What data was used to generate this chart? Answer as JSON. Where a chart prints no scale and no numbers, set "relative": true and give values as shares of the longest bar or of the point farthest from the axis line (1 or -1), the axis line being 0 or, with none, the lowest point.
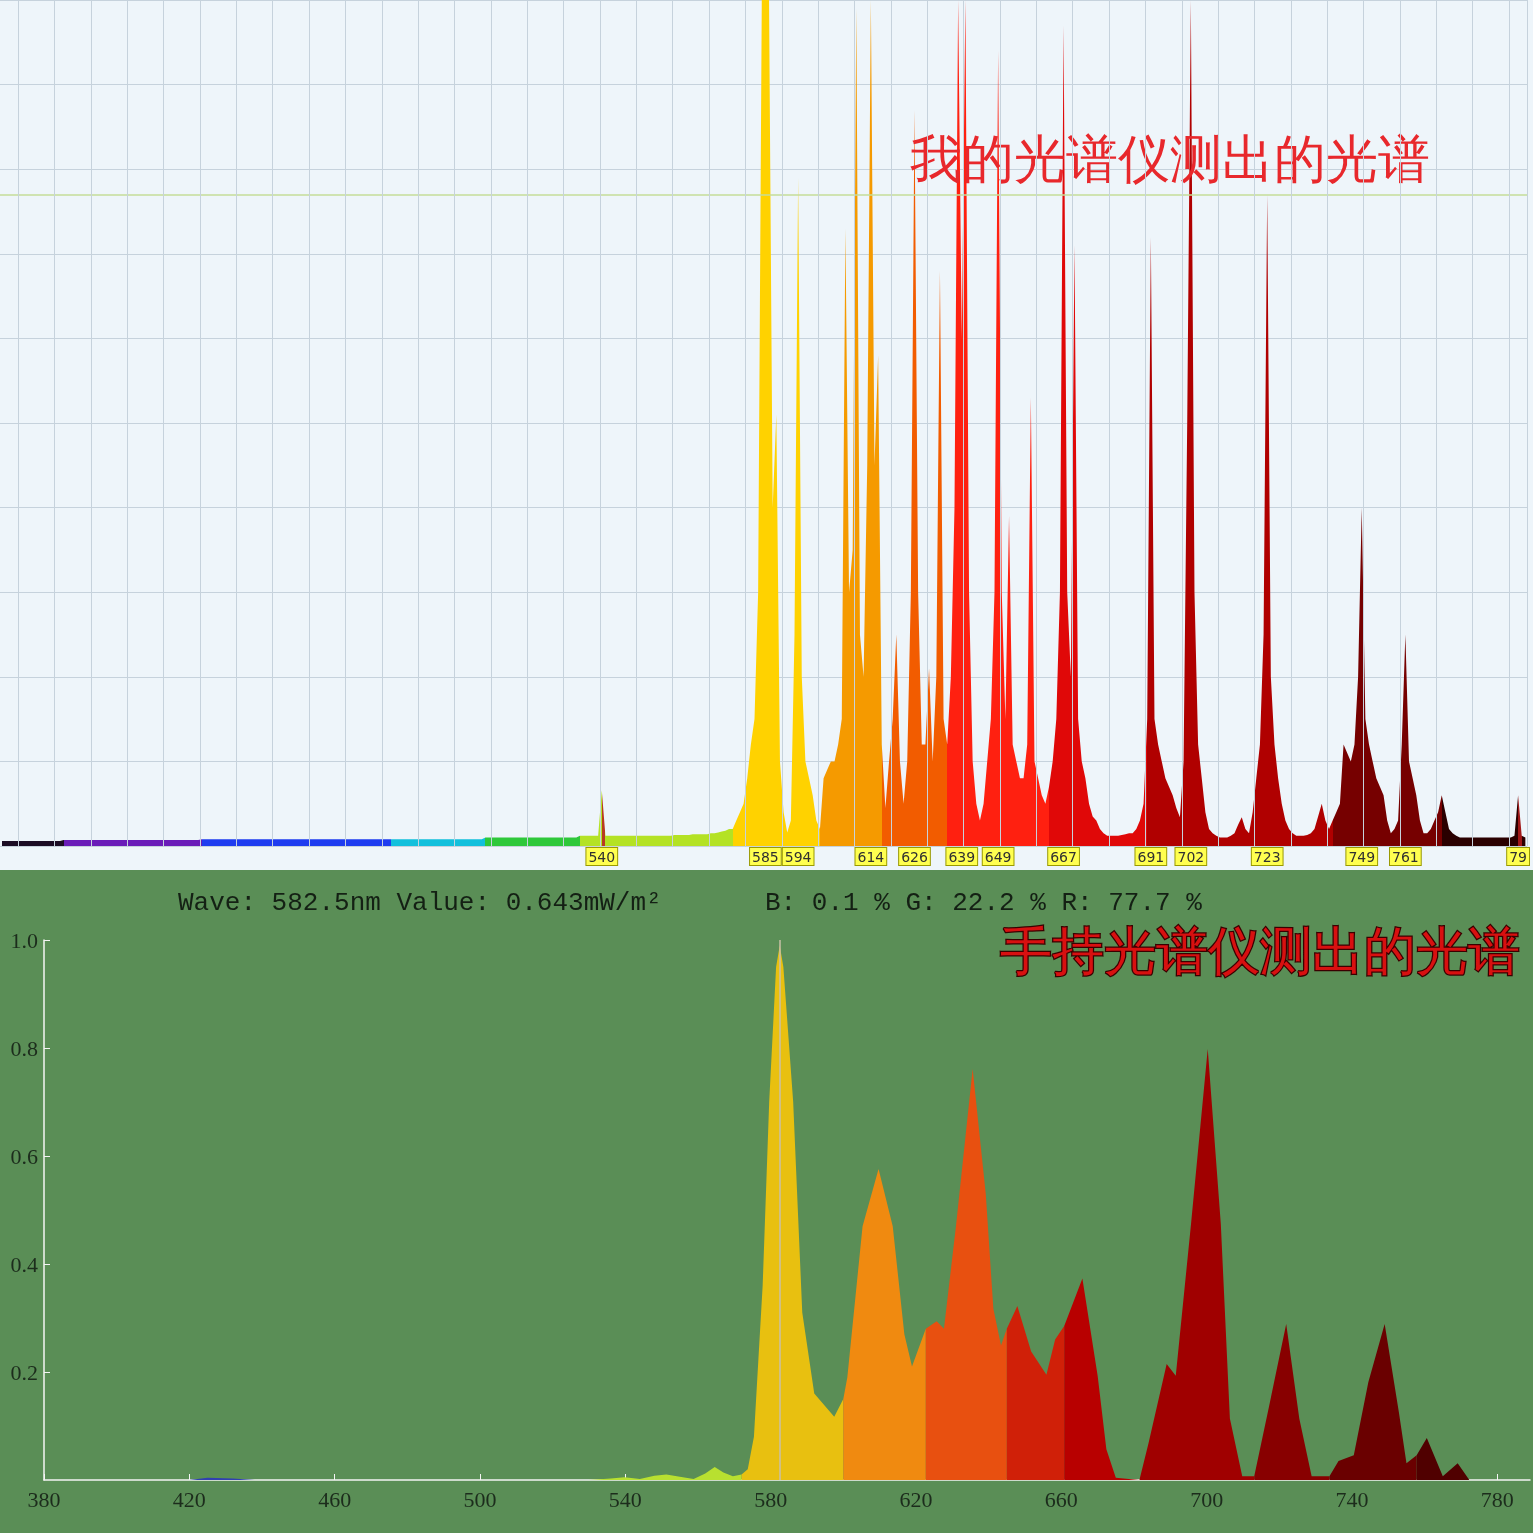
{
  "chart_data": [
    {
      "type": "area",
      "title": "我的光谱仪测出的光谱",
      "relative": true,
      "tick_labels": "x",
      "grid": true,
      "categories": [
        null,
        null,
        null,
        null,
        null,
        null,
        null,
        null,
        null,
        null,
        null,
        null,
        null,
        null,
        null,
        null,
        null,
        null,
        null,
        null,
        null,
        null,
        null,
        null,
        null,
        null,
        null,
        null,
        null,
        null,
        null,
        null,
        null,
        null,
        null,
        null,
        null,
        null,
        null,
        null,
        null,
        null,
        null,
        null,
        null,
        null,
        null,
        null,
        null,
        null,
        null,
        null,
        null,
        null,
        null,
        null,
        null,
        null,
        null,
        null,
        null,
        null,
        null,
        null,
        null,
        null,
        null,
        null,
        null,
        null,
        null,
        null,
        null,
        null,
        null,
        null,
        null,
        null,
        null,
        null,
        null,
        null,
        null,
        null,
        null,
        null,
        null,
        null,
        null,
        null,
        null,
        null,
        null,
        null,
        null,
        null,
        null,
        null,
        null,
        null,
        null,
        null,
        null,
        null,
        null,
        null,
        null,
        null,
        null,
        null,
        null,
        null,
        null,
        null,
        null,
        null,
        null,
        null,
        null,
        null,
        null,
        null,
        null,
        null,
        null,
        null,
        null,
        null,
        null,
        null,
        null,
        null,
        null,
        null,
        null,
        null,
        null,
        null,
        null,
        null,
        null,
        null,
        null,
        null,
        null,
        null,
        null,
        null,
        null,
        null,
        null,
        null,
        null,
        null,
        null,
        null,
        null,
        null,
        null,
        null,
        null,
        null,
        null,
        null,
        null,
        "540",
        null,
        null,
        null,
        null,
        null,
        null,
        null,
        null,
        null,
        null,
        null,
        null,
        null,
        null,
        null,
        null,
        null,
        null,
        null,
        null,
        null,
        null,
        null,
        null,
        null,
        null,
        null,
        null,
        null,
        null,
        null,
        null,
        null,
        null,
        null,
        null,
        null,
        null,
        null,
        null,
        null,
        null,
        null,
        null,
        "585",
        null,
        null,
        null,
        null,
        null,
        null,
        null,
        null,
        "594",
        null,
        null,
        null,
        null,
        null,
        null,
        null,
        null,
        null,
        null,
        null,
        null,
        null,
        null,
        null,
        null,
        null,
        null,
        null,
        "614",
        null,
        null,
        null,
        null,
        null,
        null,
        null,
        null,
        null,
        null,
        null,
        "626",
        null,
        null,
        null,
        null,
        null,
        null,
        null,
        null,
        null,
        null,
        null,
        null,
        "639",
        null,
        null,
        null,
        null,
        null,
        null,
        null,
        null,
        null,
        "649",
        null,
        null,
        null,
        null,
        null,
        null,
        null,
        null,
        null,
        null,
        null,
        null,
        null,
        null,
        null,
        null,
        null,
        "667",
        null,
        null,
        null,
        null,
        null,
        null,
        null,
        null,
        null,
        null,
        null,
        null,
        null,
        null,
        null,
        null,
        null,
        null,
        null,
        null,
        null,
        null,
        null,
        "691",
        null,
        null,
        null,
        null,
        null,
        null,
        null,
        null,
        null,
        null,
        "702",
        null,
        null,
        null,
        null,
        null,
        null,
        null,
        null,
        null,
        null,
        null,
        null,
        null,
        null,
        null,
        null,
        null,
        null,
        null,
        null,
        "723",
        null,
        null,
        null,
        null,
        null,
        null,
        null,
        null,
        null,
        null,
        null,
        null,
        null,
        null,
        null,
        null,
        null,
        null,
        null,
        null,
        null,
        null,
        null,
        null,
        null,
        "749",
        null,
        null,
        null,
        null,
        null,
        null,
        null,
        null,
        null,
        null,
        null,
        "761",
        null,
        null,
        null,
        null,
        null,
        null,
        null,
        null,
        null,
        null,
        null,
        null,
        null,
        null,
        null,
        null,
        null,
        null,
        null,
        null,
        null,
        null,
        null,
        null,
        null,
        null,
        null,
        null,
        null,
        null,
        "79",
        null,
        null
      ],
      "values": [
        0.006,
        0.006,
        0.006,
        0.006,
        0.006,
        0.006,
        0.006,
        0.006,
        0.006,
        0.006,
        0.006,
        0.006,
        0.006,
        0.006,
        0.006,
        0.006,
        0.006,
        0.007,
        0.007,
        0.007,
        0.007,
        0.007,
        0.007,
        0.007,
        0.007,
        0.007,
        0.007,
        0.007,
        0.007,
        0.007,
        0.007,
        0.007,
        0.007,
        0.007,
        0.007,
        0.007,
        0.007,
        0.007,
        0.007,
        0.007,
        0.007,
        0.007,
        0.007,
        0.007,
        0.007,
        0.007,
        0.007,
        0.007,
        0.007,
        0.007,
        0.007,
        0.007,
        0.007,
        0.007,
        0.007,
        0.008,
        0.008,
        0.008,
        0.008,
        0.008,
        0.008,
        0.008,
        0.008,
        0.008,
        0.008,
        0.008,
        0.008,
        0.008,
        0.008,
        0.008,
        0.008,
        0.008,
        0.008,
        0.008,
        0.008,
        0.008,
        0.008,
        0.008,
        0.008,
        0.008,
        0.008,
        0.008,
        0.008,
        0.008,
        0.008,
        0.008,
        0.008,
        0.008,
        0.008,
        0.008,
        0.008,
        0.008,
        0.008,
        0.008,
        0.008,
        0.008,
        0.008,
        0.008,
        0.008,
        0.008,
        0.008,
        0.008,
        0.008,
        0.008,
        0.008,
        0.008,
        0.008,
        0.008,
        0.008,
        0.008,
        0.008,
        0.008,
        0.008,
        0.008,
        0.008,
        0.008,
        0.008,
        0.008,
        0.008,
        0.008,
        0.008,
        0.008,
        0.008,
        0.008,
        0.008,
        0.008,
        0.008,
        0.008,
        0.008,
        0.008,
        0.008,
        0.008,
        0.008,
        0.01,
        0.01,
        0.01,
        0.01,
        0.01,
        0.01,
        0.01,
        0.01,
        0.01,
        0.01,
        0.01,
        0.01,
        0.01,
        0.01,
        0.01,
        0.01,
        0.01,
        0.01,
        0.01,
        0.01,
        0.01,
        0.01,
        0.01,
        0.01,
        0.01,
        0.01,
        0.012,
        0.012,
        0.012,
        0.012,
        0.012,
        0.012,
        0.066,
        0.012,
        0.012,
        0.012,
        0.012,
        0.012,
        0.012,
        0.012,
        0.012,
        0.012,
        0.012,
        0.012,
        0.012,
        0.012,
        0.012,
        0.012,
        0.012,
        0.012,
        0.012,
        0.012,
        0.013,
        0.013,
        0.013,
        0.013,
        0.013,
        0.014,
        0.014,
        0.014,
        0.014,
        0.014,
        0.015,
        0.015,
        0.016,
        0.017,
        0.018,
        0.02,
        0.02,
        0.03,
        0.04,
        0.05,
        0.08,
        0.12,
        0.15,
        0.3,
        1,
        1,
        1,
        0.4,
        0.51,
        0.1,
        0.04,
        0.016,
        0.03,
        0.25,
        0.79,
        0.2,
        0.1,
        0.08,
        0.06,
        0.03,
        0.02,
        0.08,
        0.09,
        0.1,
        0.1,
        0.12,
        0.15,
        0.73,
        0.3,
        0.35,
        0.99,
        0.25,
        0.2,
        0.45,
        1,
        0.45,
        0.58,
        0.12,
        0.045,
        0.1,
        0.15,
        0.25,
        0.1,
        0.05,
        0.1,
        0.3,
        0.87,
        0.3,
        0.12,
        0.12,
        0.21,
        0.1,
        0.2,
        0.68,
        0.15,
        0.12,
        0.2,
        0.4,
        1,
        0.6,
        1,
        0.3,
        0.1,
        0.05,
        0.03,
        0.05,
        0.1,
        0.15,
        0.3,
        0.94,
        0.3,
        0.15,
        0.39,
        0.12,
        0.1,
        0.08,
        0.08,
        0.12,
        0.53,
        0.1,
        0.08,
        0.06,
        0.05,
        0.07,
        0.1,
        0.15,
        0.3,
        0.97,
        0.3,
        0.2,
        0.71,
        0.15,
        0.1,
        0.08,
        0.05,
        0.035,
        0.03,
        0.02,
        0.015,
        0.012,
        0.012,
        0.012,
        0.012,
        0.013,
        0.014,
        0.015,
        0.015,
        0.02,
        0.03,
        0.05,
        0.15,
        0.72,
        0.15,
        0.12,
        0.1,
        0.08,
        0.07,
        0.06,
        0.045,
        0.034,
        0.1,
        0.5,
        1,
        0.3,
        0.12,
        0.08,
        0.04,
        0.02,
        0.015,
        0.012,
        0.01,
        0.01,
        0.01,
        0.012,
        0.015,
        0.025,
        0.034,
        0.02,
        0.015,
        0.04,
        0.08,
        0.12,
        0.25,
        0.77,
        0.2,
        0.12,
        0.08,
        0.05,
        0.03,
        0.02,
        0.015,
        0.012,
        0.012,
        0.012,
        0.013,
        0.015,
        0.02,
        0.035,
        0.05,
        0.03,
        0.02,
        0.03,
        0.04,
        0.05,
        0.12,
        0.11,
        0.1,
        0.12,
        0.2,
        0.4,
        0.15,
        0.12,
        0.1,
        0.08,
        0.07,
        0.06,
        0.03,
        0.015,
        0.02,
        0.03,
        0.12,
        0.25,
        0.1,
        0.08,
        0.06,
        0.03,
        0.015,
        0.015,
        0.02,
        0.03,
        0.04,
        0.06,
        0.04,
        0.02,
        0.015,
        0.012,
        0.01,
        0.01,
        0.01,
        0.01,
        0.01,
        0.01,
        0.01,
        0.01,
        0.01,
        0.01,
        0.01,
        0.01,
        0.01,
        0.01,
        0.01,
        0.012,
        0.06,
        0.012,
        0.01
      ],
      "colors": [
        "#1c0c24",
        "#1c0c24",
        "#1c0c24",
        "#1c0c24",
        "#1c0c24",
        "#1c0c24",
        "#1c0c24",
        "#1c0c24",
        "#1c0c24",
        "#1c0c24",
        "#1c0c24",
        "#1c0c24",
        "#1c0c24",
        "#1c0c24",
        "#1c0c24",
        "#1c0c24",
        "#1c0c24",
        "#6a1cb8",
        "#6a1cb8",
        "#6a1cb8",
        "#6a1cb8",
        "#6a1cb8",
        "#6a1cb8",
        "#6a1cb8",
        "#6a1cb8",
        "#6a1cb8",
        "#6a1cb8",
        "#6a1cb8",
        "#6a1cb8",
        "#6a1cb8",
        "#6a1cb8",
        "#6a1cb8",
        "#6a1cb8",
        "#6a1cb8",
        "#6a1cb8",
        "#6a1cb8",
        "#6a1cb8",
        "#6a1cb8",
        "#6a1cb8",
        "#6a1cb8",
        "#6a1cb8",
        "#6a1cb8",
        "#6a1cb8",
        "#6a1cb8",
        "#6a1cb8",
        "#6a1cb8",
        "#6a1cb8",
        "#6a1cb8",
        "#6a1cb8",
        "#6a1cb8",
        "#6a1cb8",
        "#6a1cb8",
        "#6a1cb8",
        "#6a1cb8",
        "#6a1cb8",
        "#1e3cf0",
        "#1e3cf0",
        "#1e3cf0",
        "#1e3cf0",
        "#1e3cf0",
        "#1e3cf0",
        "#1e3cf0",
        "#1e3cf0",
        "#1e3cf0",
        "#1e3cf0",
        "#1e3cf0",
        "#1e3cf0",
        "#1e3cf0",
        "#1e3cf0",
        "#1e3cf0",
        "#1e3cf0",
        "#1e3cf0",
        "#1e3cf0",
        "#1e3cf0",
        "#1e3cf0",
        "#1e3cf0",
        "#1e3cf0",
        "#1e3cf0",
        "#1e3cf0",
        "#1e3cf0",
        "#1e3cf0",
        "#1e3cf0",
        "#1e3cf0",
        "#1e3cf0",
        "#1e3cf0",
        "#1e3cf0",
        "#1e3cf0",
        "#1e3cf0",
        "#1e3cf0",
        "#1e3cf0",
        "#1e3cf0",
        "#1e3cf0",
        "#1e3cf0",
        "#1e3cf0",
        "#1e3cf0",
        "#1e3cf0",
        "#1e3cf0",
        "#1e3cf0",
        "#1e3cf0",
        "#1e3cf0",
        "#1e3cf0",
        "#1e3cf0",
        "#1e3cf0",
        "#1e3cf0",
        "#1e3cf0",
        "#1e3cf0",
        "#1e3cf0",
        "#12c0dc",
        "#12c0dc",
        "#12c0dc",
        "#12c0dc",
        "#12c0dc",
        "#12c0dc",
        "#12c0dc",
        "#12c0dc",
        "#12c0dc",
        "#12c0dc",
        "#12c0dc",
        "#12c0dc",
        "#12c0dc",
        "#12c0dc",
        "#12c0dc",
        "#12c0dc",
        "#12c0dc",
        "#12c0dc",
        "#12c0dc",
        "#12c0dc",
        "#12c0dc",
        "#12c0dc",
        "#12c0dc",
        "#12c0dc",
        "#12c0dc",
        "#12c0dc",
        "#2ec83a",
        "#2ec83a",
        "#2ec83a",
        "#2ec83a",
        "#2ec83a",
        "#2ec83a",
        "#2ec83a",
        "#2ec83a",
        "#2ec83a",
        "#2ec83a",
        "#2ec83a",
        "#2ec83a",
        "#2ec83a",
        "#2ec83a",
        "#2ec83a",
        "#2ec83a",
        "#2ec83a",
        "#2ec83a",
        "#2ec83a",
        "#2ec83a",
        "#2ec83a",
        "#2ec83a",
        "#2ec83a",
        "#2ec83a",
        "#2ec83a",
        "#2ec83a",
        "#b4e224",
        "#b4e224",
        "#b4e224",
        "#b4e224",
        "#b4e224",
        "#b4e224",
        "#b83a20",
        "#b4e224",
        "#b4e224",
        "#b4e224",
        "#b4e224",
        "#b4e224",
        "#b4e224",
        "#b4e224",
        "#b4e224",
        "#b4e224",
        "#b4e224",
        "#b4e224",
        "#b4e224",
        "#b4e224",
        "#b4e224",
        "#b4e224",
        "#b4e224",
        "#b4e224",
        "#b4e224",
        "#b4e224",
        "#b4e224",
        "#b4e224",
        "#b4e224",
        "#b4e224",
        "#b4e224",
        "#b4e224",
        "#b4e224",
        "#b4e224",
        "#b4e224",
        "#b4e224",
        "#b4e224",
        "#b4e224",
        "#b4e224",
        "#b4e224",
        "#b4e224",
        "#b4e224",
        "#ffd200",
        "#ffd200",
        "#ffd200",
        "#ffd200",
        "#ffd200",
        "#ffd200",
        "#ffd200",
        "#ffd200",
        "#ffd200",
        "#ffd200",
        "#ffd200",
        "#ffd200",
        "#ffd200",
        "#ffd200",
        "#ffd200",
        "#ffd200",
        "#ffd200",
        "#ffd200",
        "#ffd200",
        "#ffd200",
        "#ffd200",
        "#ffd200",
        "#ffd200",
        "#ffd200",
        "#f59a00",
        "#f59a00",
        "#f59a00",
        "#f59a00",
        "#f59a00",
        "#f59a00",
        "#f59a00",
        "#f59a00",
        "#f59a00",
        "#f59a00",
        "#f59a00",
        "#f59a00",
        "#f59a00",
        "#f59a00",
        "#f59a00",
        "#f59a00",
        "#f59a00",
        "#f25c00",
        "#f25c00",
        "#f25c00",
        "#f25c00",
        "#f25c00",
        "#f25c00",
        "#f25c00",
        "#f25c00",
        "#f25c00",
        "#f25c00",
        "#f25c00",
        "#f25c00",
        "#f25c00",
        "#f25c00",
        "#f25c00",
        "#f25c00",
        "#f25c00",
        "#f25c00",
        "#ff2010",
        "#ff2010",
        "#ff2010",
        "#ff2010",
        "#ff2010",
        "#ff2010",
        "#ff2010",
        "#ff2010",
        "#ff2010",
        "#ff2010",
        "#ff2010",
        "#ff2010",
        "#ff2010",
        "#ff2010",
        "#ff2010",
        "#ff2010",
        "#ff2010",
        "#ff2010",
        "#ff2010",
        "#ff2010",
        "#ff2010",
        "#ff2010",
        "#ff2010",
        "#ff2010",
        "#ff2010",
        "#ff2010",
        "#ff2010",
        "#ff2010",
        "#e00808",
        "#e00808",
        "#e00808",
        "#e00808",
        "#e00808",
        "#e00808",
        "#e00808",
        "#e00808",
        "#e00808",
        "#e00808",
        "#e00808",
        "#e00808",
        "#e00808",
        "#e00808",
        "#e00808",
        "#e00808",
        "#e00808",
        "#e00808",
        "#e00808",
        "#e00808",
        "#e00808",
        "#e00808",
        "#e00808",
        "#e00808",
        "#e00808",
        "#e00808",
        "#e00808",
        "#b00000",
        "#b00000",
        "#b00000",
        "#b00000",
        "#b00000",
        "#b00000",
        "#b00000",
        "#b00000",
        "#b00000",
        "#b00000",
        "#b00000",
        "#b00000",
        "#b00000",
        "#b00000",
        "#b00000",
        "#b00000",
        "#b00000",
        "#b00000",
        "#b00000",
        "#b00000",
        "#b00000",
        "#b00000",
        "#b00000",
        "#b00000",
        "#b00000",
        "#b00000",
        "#b00000",
        "#b00000",
        "#b00000",
        "#b00000",
        "#b00000",
        "#b00000",
        "#b00000",
        "#b00000",
        "#b00000",
        "#b00000",
        "#b00000",
        "#b00000",
        "#b00000",
        "#b00000",
        "#b00000",
        "#b00000",
        "#b00000",
        "#b00000",
        "#b00000",
        "#b00000",
        "#b00000",
        "#b00000",
        "#b00000",
        "#b00000",
        "#b00000",
        "#760000",
        "#760000",
        "#760000",
        "#760000",
        "#760000",
        "#760000",
        "#760000",
        "#760000",
        "#760000",
        "#760000",
        "#760000",
        "#760000",
        "#760000",
        "#760000",
        "#760000",
        "#760000",
        "#760000",
        "#760000",
        "#760000",
        "#760000",
        "#760000",
        "#760000",
        "#760000",
        "#760000",
        "#760000",
        "#760000",
        "#760000",
        "#760000",
        "#760000",
        "#760000",
        "#2a0000",
        "#2a0000",
        "#2a0000",
        "#2a0000",
        "#2a0000",
        "#2a0000",
        "#2a0000",
        "#2a0000",
        "#2a0000",
        "#2a0000",
        "#2a0000",
        "#2a0000",
        "#2a0000",
        "#2a0000",
        "#2a0000",
        "#2a0000",
        "#2a0000",
        "#2a0000",
        "#2a0000",
        "#2a0000",
        "#2a0000",
        "#a01818",
        "#2a0000",
        "#2a0000"
      ],
      "ref_lines": [
        {
          "axis": "y",
          "value": 0.77,
          "color": "#c4dc98"
        }
      ]
    },
    {
      "type": "area",
      "title": "手持光谱仪测出的光谱",
      "xlim": [
        380,
        789
      ],
      "xticks": [
        380,
        420,
        460,
        500,
        540,
        580,
        620,
        660,
        700,
        740,
        780
      ],
      "ylim": [
        0,
        1
      ],
      "yticks": [
        0.2,
        0.4,
        0.6,
        0.8,
        {
          "value": 1,
          "label": "1.0"
        }
      ],
      "series": [
        {
          "color": "#3040b0",
          "x": [
            380,
            420,
            425,
            432,
            438,
            530
          ],
          "values": [
            0,
            0,
            0.004,
            0.003,
            0,
            0
          ]
        },
        {
          "color": "#b8e030",
          "x": [
            530,
            536,
            539.8,
            544,
            548,
            551.3,
            555,
            558.8,
            562,
            564.6,
            567,
            569.6,
            572
          ],
          "values": [
            0,
            0.003,
            0.005,
            0.002,
            0.008,
            0.01,
            0.006,
            0.002,
            0.012,
            0.024,
            0.014,
            0.007,
            0.01
          ]
        },
        {
          "color": "#e8c010",
          "x": [
            572,
            573.7,
            575.4,
            577.8,
            579.6,
            581.5,
            582.5,
            583.5,
            586.2,
            588.7,
            592,
            597.5,
            600
          ],
          "values": [
            0.01,
            0.02,
            0.08,
            0.36,
            0.7,
            0.95,
            0.99,
            0.95,
            0.7,
            0.31,
            0.16,
            0.117,
            0.15
          ]
        },
        {
          "color": "#f08a10",
          "x": [
            600,
            601.1,
            605.3,
            609.7,
            613.6,
            616.8,
            618.9,
            622.7
          ],
          "values": [
            0.15,
            0.19,
            0.47,
            0.576,
            0.47,
            0.27,
            0.21,
            0.28
          ]
        },
        {
          "color": "#e85010",
          "x": [
            622.7,
            625.7,
            627.7,
            631,
            635.6,
            639.2,
            641.3,
            643.4,
            645
          ],
          "values": [
            0.28,
            0.294,
            0.28,
            0.47,
            0.761,
            0.53,
            0.317,
            0.249,
            0.28
          ]
        },
        {
          "color": "#d02008",
          "x": [
            645,
            647.9,
            651.7,
            655.9,
            658.3,
            660.8
          ],
          "values": [
            0.28,
            0.322,
            0.238,
            0.195,
            0.26,
            0.285
          ]
        },
        {
          "color": "#b80000",
          "x": [
            660.8,
            665.8,
            670,
            672.4,
            675,
            681.5
          ],
          "values": [
            0.285,
            0.373,
            0.193,
            0.057,
            0.004,
            0
          ]
        },
        {
          "color": "#a00000",
          "x": [
            681.5,
            684,
            689,
            691.5,
            695.7,
            700.3,
            703.9,
            706.4,
            709.8,
            713.1
          ],
          "values": [
            0,
            0.068,
            0.215,
            0.193,
            0.474,
            0.798,
            0.474,
            0.114,
            0.007,
            0.007
          ]
        },
        {
          "color": "#880000",
          "x": [
            713.1,
            717.2,
            721.9,
            725.5,
            728.9,
            733.8
          ],
          "values": [
            0.007,
            0.137,
            0.289,
            0.114,
            0.007,
            0.007
          ]
        },
        {
          "color": "#6a0000",
          "x": [
            733.8,
            736.3,
            740.5,
            744.5,
            749,
            752.9,
            755,
            757.8
          ],
          "values": [
            0.007,
            0.035,
            0.046,
            0.181,
            0.289,
            0.126,
            0.031,
            0.046
          ]
        },
        {
          "color": "#500000",
          "x": [
            757.8,
            760.6,
            765,
            769.1,
            772.3
          ],
          "values": [
            0.046,
            0.078,
            0.007,
            0.031,
            0
          ]
        }
      ],
      "annotations": [
        "Wave: 582.5nm Value: 0.643mW/m²",
        "B: 0.1 % G: 22.2 % R: 77.7 %"
      ],
      "ref_lines": [
        {
          "axis": "x",
          "value": 582.5,
          "color": "#c8c0a8"
        }
      ]
    }
  ]
}
